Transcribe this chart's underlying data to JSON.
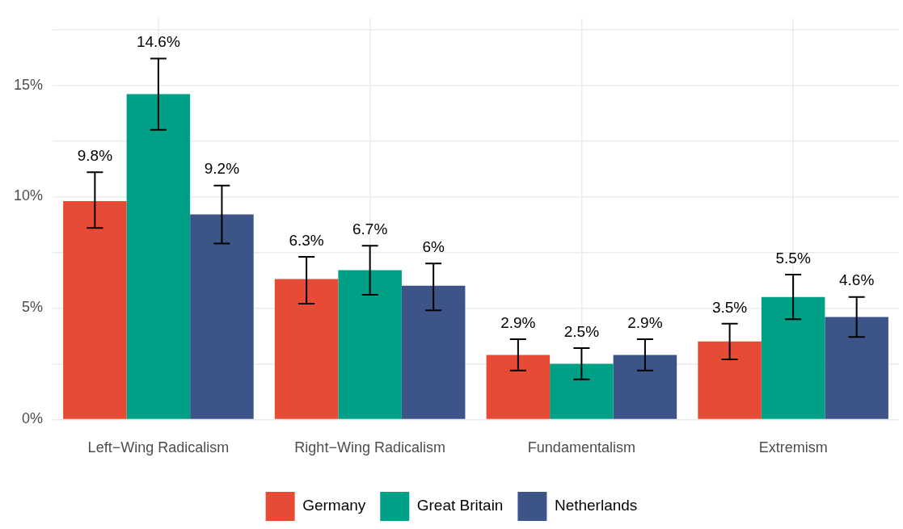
{
  "chart_data": {
    "type": "bar",
    "categories": [
      "Left−Wing Radicalism",
      "Right−Wing Radicalism",
      "Fundamentalism",
      "Extremism"
    ],
    "series": [
      {
        "name": "Germany",
        "color": "#e64b35",
        "values": [
          9.8,
          6.3,
          2.9,
          3.5
        ],
        "value_labels": [
          "9.8%",
          "6.3%",
          "2.9%",
          "3.5%"
        ],
        "errors": [
          [
            8.6,
            11.1
          ],
          [
            5.2,
            7.3
          ],
          [
            2.2,
            3.6
          ],
          [
            2.7,
            4.3
          ]
        ]
      },
      {
        "name": "Great Britain",
        "color": "#00a087",
        "values": [
          14.6,
          6.7,
          2.5,
          5.5
        ],
        "value_labels": [
          "14.6%",
          "6.7%",
          "2.5%",
          "5.5%"
        ],
        "errors": [
          [
            13.0,
            16.2
          ],
          [
            5.6,
            7.8
          ],
          [
            1.8,
            3.2
          ],
          [
            4.5,
            6.5
          ]
        ]
      },
      {
        "name": "Netherlands",
        "color": "#3c5488",
        "values": [
          9.2,
          6,
          2.9,
          4.6
        ],
        "value_labels": [
          "9.2%",
          "6%",
          "2.9%",
          "4.6%"
        ],
        "errors": [
          [
            7.9,
            10.5
          ],
          [
            4.9,
            7.0
          ],
          [
            2.2,
            3.6
          ],
          [
            3.7,
            5.5
          ]
        ]
      }
    ],
    "ylim": [
      0,
      18
    ],
    "yticks": [
      {
        "value": 0,
        "label": "0%"
      },
      {
        "value": 2.5,
        "label": null
      },
      {
        "value": 5,
        "label": "5%"
      },
      {
        "value": 7.5,
        "label": null
      },
      {
        "value": 10,
        "label": "10%"
      },
      {
        "value": 12.5,
        "label": null
      },
      {
        "value": 15,
        "label": "15%"
      },
      {
        "value": 17.5,
        "label": null
      }
    ],
    "grid": true,
    "legend": "bottom"
  }
}
